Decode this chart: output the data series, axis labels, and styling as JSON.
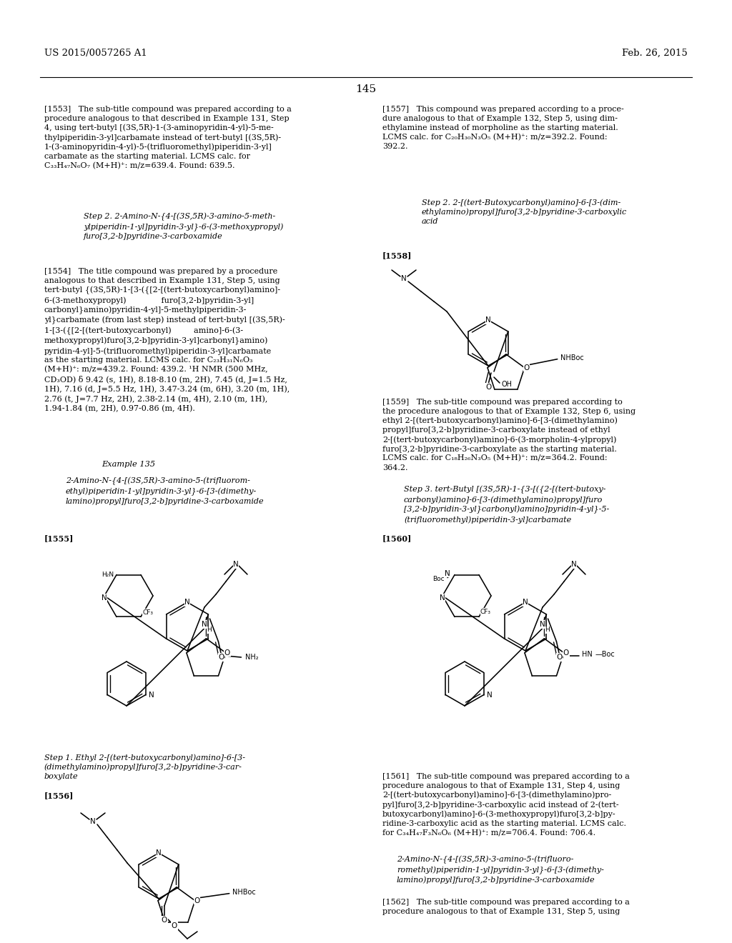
{
  "page_number": "145",
  "patent_number": "US 2015/0057265 A1",
  "patent_date": "Feb. 26, 2015",
  "bg_color": "#ffffff",
  "text_color": "#000000"
}
